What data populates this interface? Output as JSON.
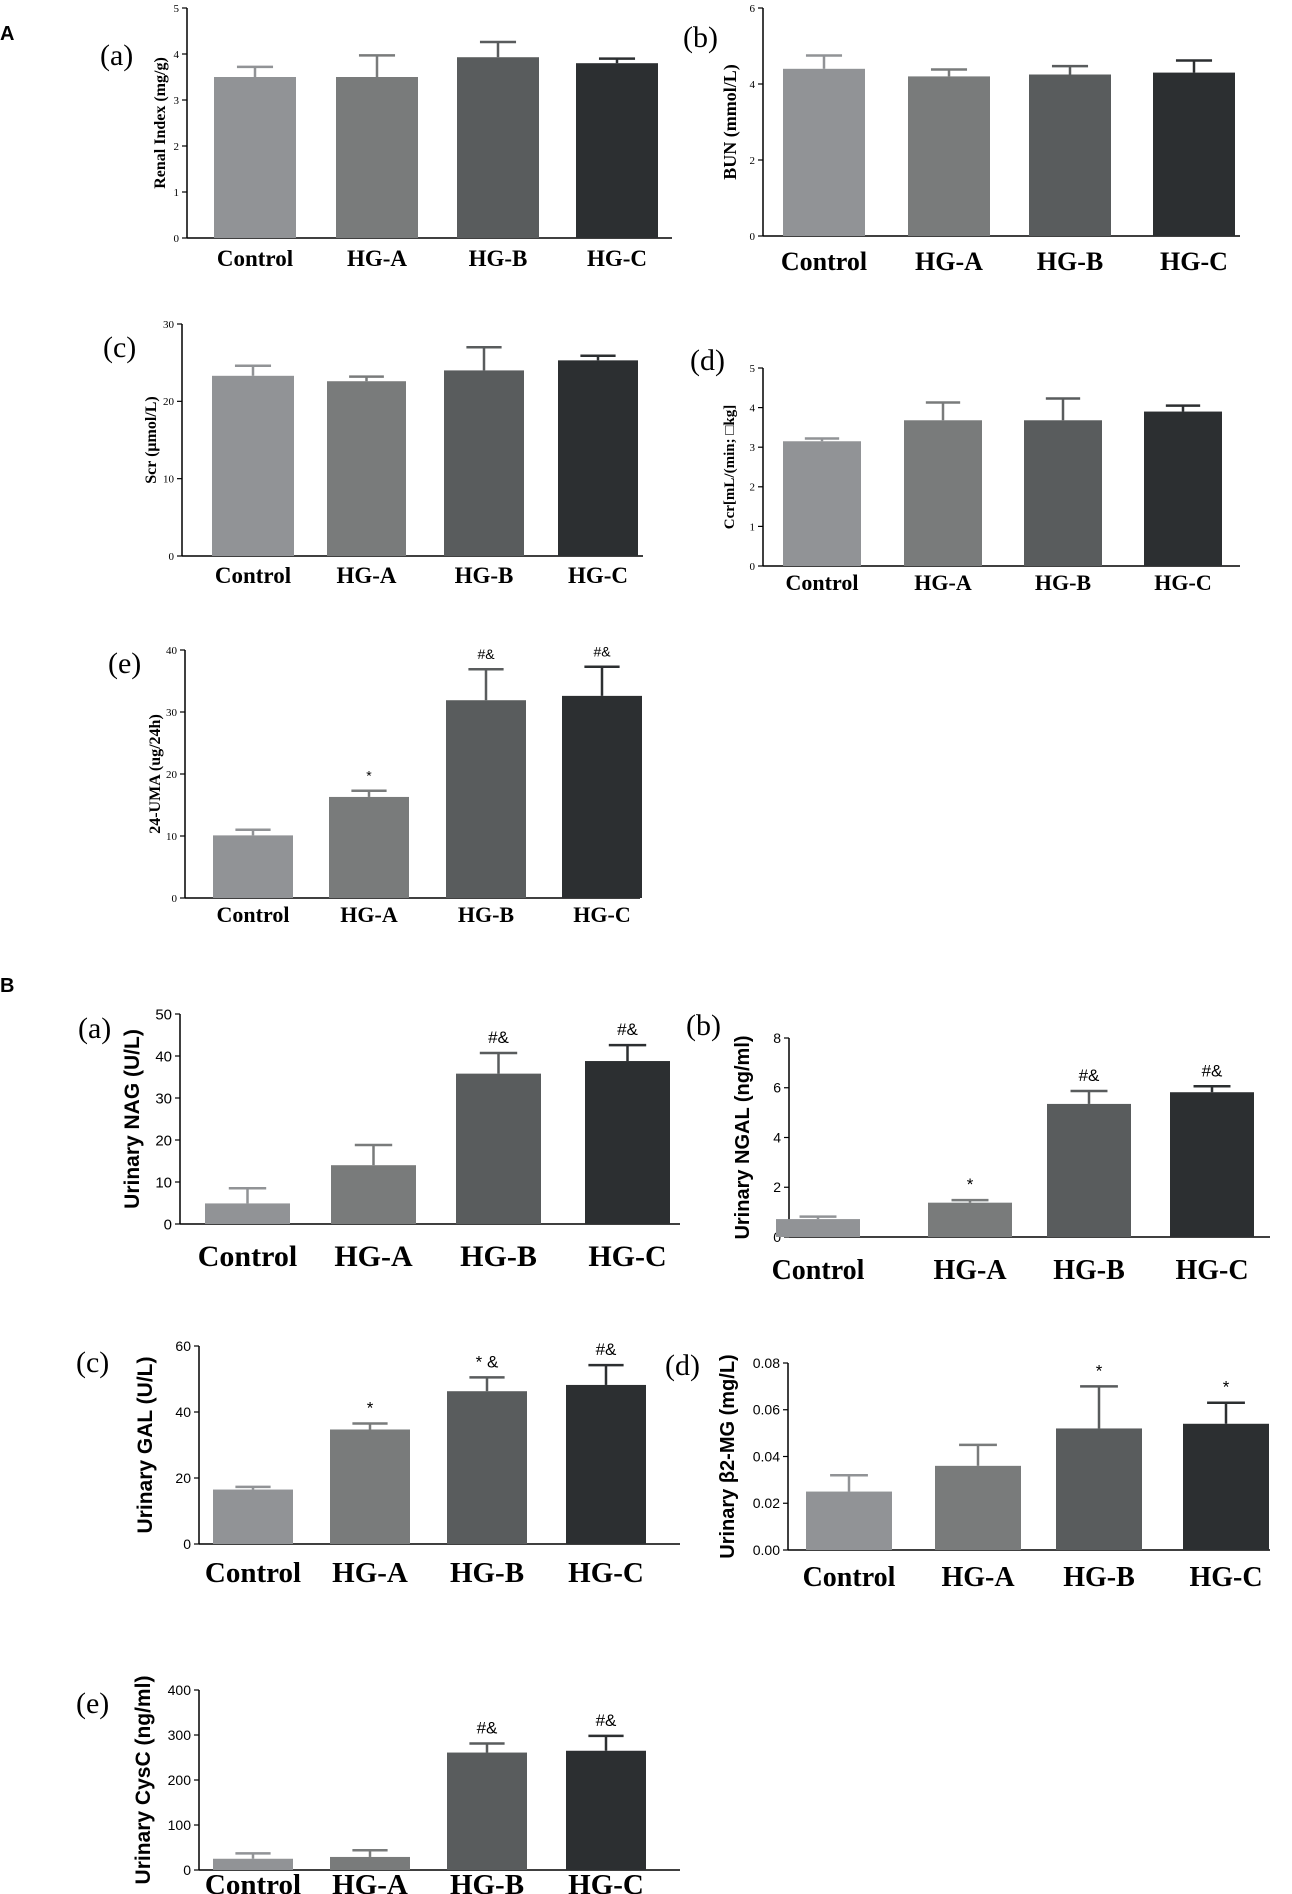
{
  "sections": [
    "A",
    "B"
  ],
  "colors": [
    "#919396",
    "#797b7b",
    "#595c5d",
    "#2c2f31"
  ],
  "chart_data": [
    {
      "type": "bar",
      "section": "A",
      "panel": "(a)",
      "ylabel": "Renal Index (mg/g)",
      "ylim": [
        0,
        5
      ],
      "yticks": [
        0,
        1,
        2,
        3,
        4,
        5
      ],
      "categories": [
        "Control",
        "HG-A",
        "HG-B",
        "HG-C"
      ],
      "values": [
        3.5,
        3.5,
        3.93,
        3.8
      ],
      "errors": [
        0.22,
        0.47,
        0.33,
        0.1
      ],
      "annotations": [
        "",
        "",
        "",
        ""
      ]
    },
    {
      "type": "bar",
      "section": "A",
      "panel": "(b)",
      "ylabel": "BUN (mmol/L)",
      "ylim": [
        0,
        6
      ],
      "yticks": [
        0,
        2,
        4,
        6
      ],
      "categories": [
        "Control",
        "HG-A",
        "HG-B",
        "HG-C"
      ],
      "values": [
        4.4,
        4.2,
        4.25,
        4.3
      ],
      "errors": [
        0.35,
        0.18,
        0.22,
        0.32
      ],
      "annotations": [
        "",
        "",
        "",
        ""
      ]
    },
    {
      "type": "bar",
      "section": "A",
      "panel": "(c)",
      "ylabel": "Scr (μmol/L)",
      "ylim": [
        0,
        30
      ],
      "yticks": [
        0,
        10,
        20,
        30
      ],
      "categories": [
        "Control",
        "HG-A",
        "HG-B",
        "HG-C"
      ],
      "values": [
        23.3,
        22.6,
        24.0,
        25.3
      ],
      "errors": [
        1.3,
        0.6,
        3.0,
        0.6
      ],
      "annotations": [
        "",
        "",
        "",
        ""
      ]
    },
    {
      "type": "bar",
      "section": "A",
      "panel": "(d)",
      "ylabel": "Ccr[mL/(min; □kg]",
      "ylim": [
        0,
        5
      ],
      "yticks": [
        0,
        1,
        2,
        3,
        4,
        5
      ],
      "categories": [
        "Control",
        "HG-A",
        "HG-B",
        "HG-C"
      ],
      "values": [
        3.15,
        3.68,
        3.68,
        3.9
      ],
      "errors": [
        0.07,
        0.45,
        0.55,
        0.15
      ],
      "annotations": [
        "",
        "",
        "",
        ""
      ]
    },
    {
      "type": "bar",
      "section": "A",
      "panel": "(e)",
      "ylabel": "24-UMA (ug/24h)",
      "ylim": [
        0,
        40
      ],
      "yticks": [
        0,
        10,
        20,
        30,
        40
      ],
      "categories": [
        "Control",
        "HG-A",
        "HG-B",
        "HG-C"
      ],
      "values": [
        10.1,
        16.3,
        31.9,
        32.6
      ],
      "errors": [
        0.9,
        1.0,
        5.0,
        4.7
      ],
      "annotations": [
        "",
        "*",
        "#&",
        "#&"
      ]
    },
    {
      "type": "bar",
      "section": "B",
      "panel": "(a)",
      "ylabel": "Urinary NAG (U/L)",
      "ylim": [
        0,
        50
      ],
      "yticks": [
        0,
        10,
        20,
        30,
        40,
        50
      ],
      "categories": [
        "Control",
        "HG-A",
        "HG-B",
        "HG-C"
      ],
      "values": [
        4.9,
        14.0,
        35.8,
        38.8
      ],
      "errors": [
        3.6,
        4.8,
        4.9,
        3.8
      ],
      "annotations": [
        "",
        "",
        "#&",
        "#&"
      ]
    },
    {
      "type": "bar",
      "section": "B",
      "panel": "(b)",
      "ylabel": "Urinary NGAL (ng/ml)",
      "ylim": [
        0,
        8
      ],
      "yticks": [
        0,
        2,
        4,
        6,
        8
      ],
      "categories": [
        "Control",
        "HG-A",
        "HG-B",
        "HG-C"
      ],
      "values": [
        0.72,
        1.38,
        5.35,
        5.82
      ],
      "errors": [
        0.1,
        0.1,
        0.52,
        0.24
      ],
      "annotations": [
        "",
        "*",
        "#&",
        "#&"
      ]
    },
    {
      "type": "bar",
      "section": "B",
      "panel": "(c)",
      "ylabel": "Urinary GAL (U/L)",
      "ylim": [
        0,
        60
      ],
      "yticks": [
        0,
        20,
        40,
        60
      ],
      "categories": [
        "Control",
        "HG-A",
        "HG-B",
        "HG-C"
      ],
      "values": [
        16.5,
        34.7,
        46.3,
        48.2
      ],
      "errors": [
        0.8,
        1.8,
        4.2,
        6.0
      ],
      "annotations": [
        "",
        "*",
        "* &",
        "#&"
      ]
    },
    {
      "type": "bar",
      "section": "B",
      "panel": "(d)",
      "ylabel": "Urinary β2-MG (mg/L)",
      "ylim": [
        0,
        0.08
      ],
      "yticks": [
        "0.00",
        "0.02",
        "0.04",
        "0.06",
        "0.08"
      ],
      "categories": [
        "Control",
        "HG-A",
        "HG-B",
        "HG-C"
      ],
      "values": [
        0.025,
        0.036,
        0.052,
        0.054
      ],
      "errors": [
        0.007,
        0.009,
        0.018,
        0.009
      ],
      "annotations": [
        "",
        "",
        "*",
        "*"
      ]
    },
    {
      "type": "bar",
      "section": "B",
      "panel": "(e)",
      "ylabel": "Urinary CysC (ng/ml)",
      "ylim": [
        0,
        400
      ],
      "yticks": [
        0,
        100,
        200,
        300,
        400
      ],
      "categories": [
        "Control",
        "HG-A",
        "HG-B",
        "HG-C"
      ],
      "values": [
        25,
        29,
        261,
        265
      ],
      "errors": [
        12,
        15,
        20,
        33
      ],
      "annotations": [
        "",
        "",
        "#&",
        "#&"
      ]
    }
  ]
}
